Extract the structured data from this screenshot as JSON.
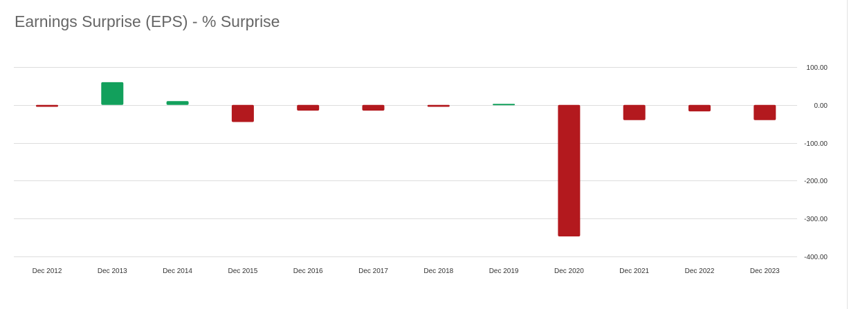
{
  "chart_data": {
    "type": "bar",
    "title": "Earnings Surprise (EPS) - % Surprise",
    "xlabel": "",
    "ylabel": "",
    "categories": [
      "Dec 2012",
      "Dec 2013",
      "Dec 2014",
      "Dec 2015",
      "Dec 2016",
      "Dec 2017",
      "Dec 2018",
      "Dec 2019",
      "Dec 2020",
      "Dec 2021",
      "Dec 2022",
      "Dec 2023"
    ],
    "values": [
      -5,
      60,
      10,
      -45,
      -15,
      -15,
      -5,
      3,
      -347,
      -40,
      -17,
      -40
    ],
    "ylim": [
      -400,
      100
    ],
    "yticks": [
      100,
      0,
      -100,
      -200,
      -300,
      -400
    ],
    "ytick_labels": [
      "100.00",
      "0.00",
      "-100.00",
      "-200.00",
      "-300.00",
      "-400.00"
    ],
    "grid": true,
    "legend": "none",
    "colors": {
      "positive": "#12a05c",
      "negative": "#b3191e",
      "grid": "#dddddd",
      "title": "#666666",
      "tick": "#333333"
    }
  }
}
